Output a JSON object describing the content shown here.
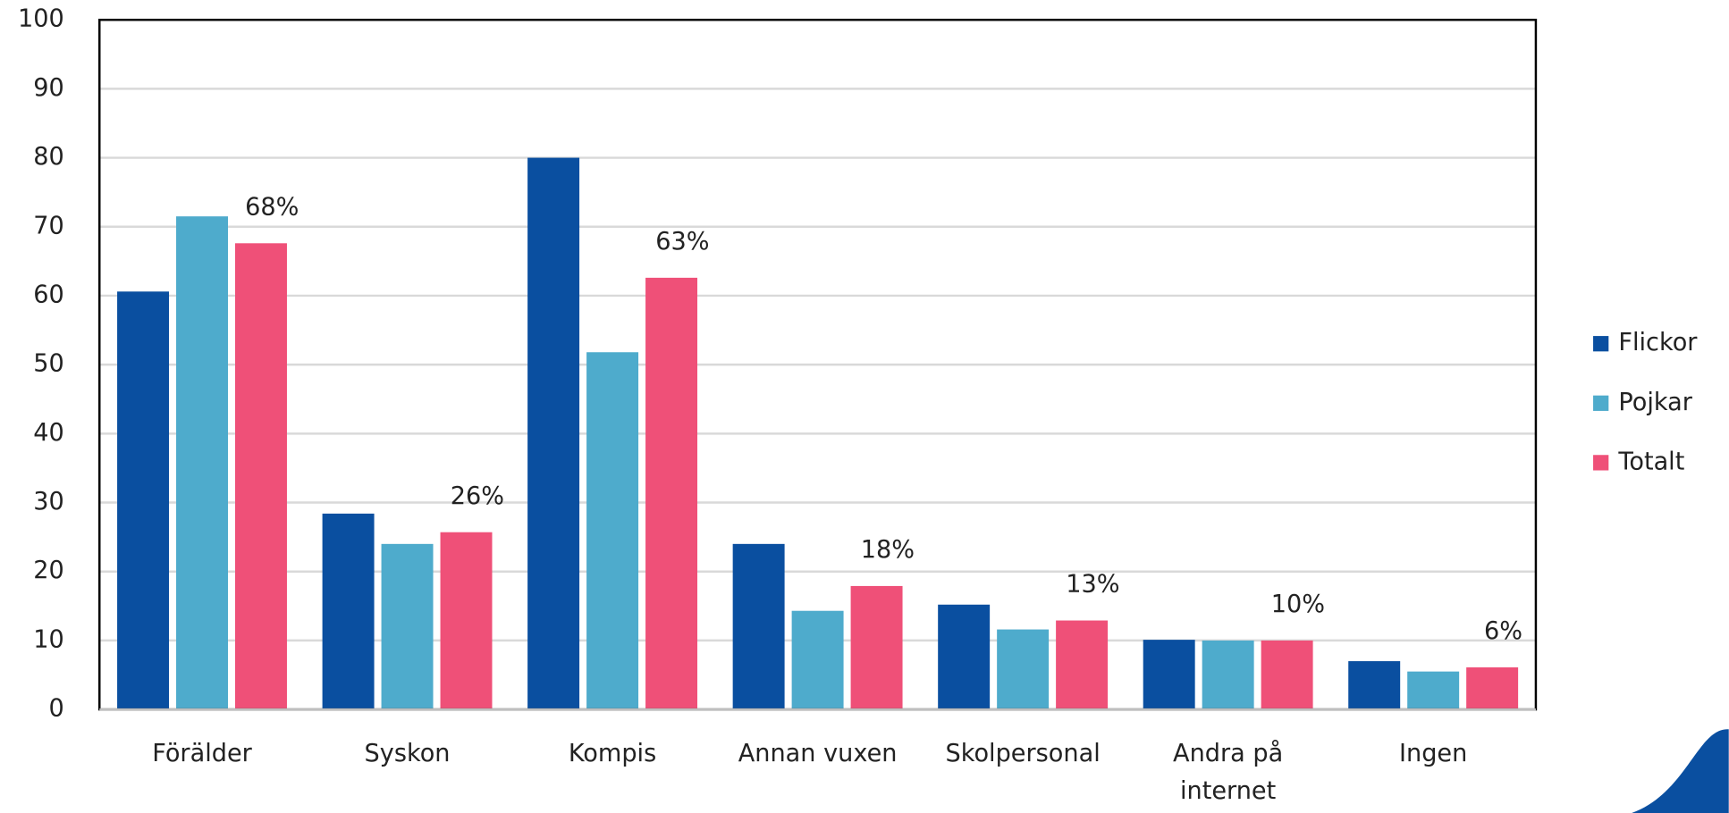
{
  "chart_data": {
    "type": "bar",
    "categories": [
      "Förälder",
      "Syskon",
      "Kompis",
      "Annan vuxen",
      "Skolpersonal",
      "Andra på internet",
      "Ingen"
    ],
    "series": [
      {
        "name": "Flickor",
        "color": "#0a4fa0",
        "values": [
          60.6,
          28.4,
          80,
          24,
          15.2,
          10.1,
          7.0
        ]
      },
      {
        "name": "Pojkar",
        "color": "#4eabcc",
        "values": [
          71.5,
          24,
          51.8,
          14.3,
          11.6,
          10,
          5.5
        ]
      },
      {
        "name": "Totalt",
        "color": "#ef5078",
        "values": [
          67.6,
          25.7,
          62.6,
          17.9,
          12.9,
          10,
          6.1
        ],
        "value_labels": [
          "68%",
          "26%",
          "63%",
          "18%",
          "13%",
          "10%",
          "6%"
        ]
      }
    ],
    "ylim": [
      0,
      100
    ],
    "yticks": [
      0,
      10,
      20,
      30,
      40,
      50,
      60,
      70,
      80,
      90,
      100
    ],
    "grid": true,
    "legend": "right"
  }
}
